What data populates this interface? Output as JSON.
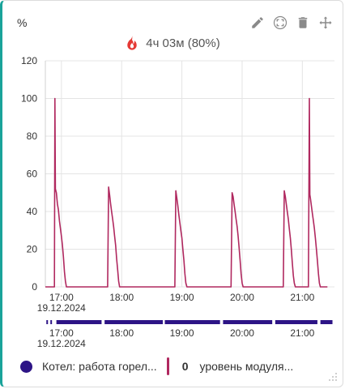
{
  "card": {
    "unit_label": "%",
    "summary_text": "4ч 03м (80%)"
  },
  "toolbar": [
    {
      "icon": "pencil-icon"
    },
    {
      "icon": "fullscreen-icon"
    },
    {
      "icon": "trash-icon"
    },
    {
      "icon": "move-icon"
    }
  ],
  "colors": {
    "accent": "#1aa39a",
    "series_line": "#b0285f",
    "burner_bar": "#2d1486",
    "flame": "#e53935"
  },
  "chart_data": {
    "type": "line",
    "title": "",
    "ylabel": "%",
    "ylim": [
      0,
      120
    ],
    "yticks": [
      0,
      20,
      40,
      60,
      80,
      100,
      120
    ],
    "xlim": [
      "16:44",
      "21:32"
    ],
    "xticks": [
      {
        "t": "17:00",
        "label": "17:00",
        "sublabel": "19.12.2024"
      },
      {
        "t": "18:00",
        "label": "18:00"
      },
      {
        "t": "19:00",
        "label": "19:00"
      },
      {
        "t": "20:00",
        "label": "20:00"
      },
      {
        "t": "21:00",
        "label": "21:00"
      }
    ],
    "grid": true,
    "series": [
      {
        "name": "уровень модуля...",
        "points": [
          [
            "16:44",
            0
          ],
          [
            "16:53",
            0
          ],
          [
            "16:53.5",
            100
          ],
          [
            "16:54",
            52
          ],
          [
            "16:55",
            50
          ],
          [
            "16:56",
            44
          ],
          [
            "16:57",
            41
          ],
          [
            "16:58",
            35
          ],
          [
            "16:59",
            31
          ],
          [
            "17:00",
            27
          ],
          [
            "17:01",
            22
          ],
          [
            "17:02",
            16
          ],
          [
            "17:03",
            8
          ],
          [
            "17:04",
            3
          ],
          [
            "17:05",
            0
          ],
          [
            "17:46",
            0
          ],
          [
            "17:47",
            53
          ],
          [
            "17:48",
            49
          ],
          [
            "17:49",
            44
          ],
          [
            "17:50",
            40
          ],
          [
            "17:51",
            36
          ],
          [
            "17:52",
            32
          ],
          [
            "17:53",
            27
          ],
          [
            "17:54",
            22
          ],
          [
            "17:55",
            15
          ],
          [
            "17:56",
            9
          ],
          [
            "17:57",
            3
          ],
          [
            "17:58",
            0
          ],
          [
            "18:53",
            0
          ],
          [
            "18:54",
            51
          ],
          [
            "18:55",
            47
          ],
          [
            "18:56",
            43
          ],
          [
            "18:57",
            38
          ],
          [
            "18:58",
            34
          ],
          [
            "18:59",
            30
          ],
          [
            "19:00",
            26
          ],
          [
            "19:01",
            20
          ],
          [
            "19:02",
            14
          ],
          [
            "19:03",
            7
          ],
          [
            "19:04",
            2
          ],
          [
            "19:05",
            0
          ],
          [
            "19:49",
            0
          ],
          [
            "19:50",
            50
          ],
          [
            "19:51",
            48
          ],
          [
            "19:52",
            44
          ],
          [
            "19:53",
            40
          ],
          [
            "19:54",
            36
          ],
          [
            "19:55",
            32
          ],
          [
            "19:56",
            27
          ],
          [
            "19:57",
            21
          ],
          [
            "19:58",
            14
          ],
          [
            "19:59",
            7
          ],
          [
            "20:00",
            2
          ],
          [
            "20:01",
            0
          ],
          [
            "20:41",
            0
          ],
          [
            "20:42",
            51
          ],
          [
            "20:43",
            48
          ],
          [
            "20:44",
            44
          ],
          [
            "20:45",
            40
          ],
          [
            "20:46",
            36
          ],
          [
            "20:47",
            31
          ],
          [
            "20:48",
            26
          ],
          [
            "20:49",
            20
          ],
          [
            "20:50",
            13
          ],
          [
            "20:51",
            6
          ],
          [
            "20:52",
            2
          ],
          [
            "20:53",
            0
          ],
          [
            "21:06",
            0
          ],
          [
            "21:07",
            100
          ],
          [
            "21:07.5",
            49
          ],
          [
            "21:08",
            47
          ],
          [
            "21:09",
            43
          ],
          [
            "21:10",
            39
          ],
          [
            "21:11",
            35
          ],
          [
            "21:12",
            31
          ],
          [
            "21:13",
            26
          ],
          [
            "21:14",
            20
          ],
          [
            "21:15",
            14
          ],
          [
            "21:16",
            7
          ],
          [
            "21:17",
            2
          ],
          [
            "21:18",
            0
          ],
          [
            "21:25",
            0
          ]
        ]
      }
    ],
    "burner_timeline": {
      "name": "Котел: работа горел...",
      "on_segments": [
        [
          "16:45",
          "16:46"
        ],
        [
          "16:49",
          "16:50"
        ],
        [
          "16:55",
          "17:40"
        ],
        [
          "17:43",
          "18:41"
        ],
        [
          "18:43",
          "19:38"
        ],
        [
          "19:41",
          "20:30"
        ],
        [
          "20:33",
          "21:15"
        ],
        [
          "21:18",
          "21:30"
        ]
      ]
    }
  },
  "legend": {
    "burner_label": "Котел: работа горел...",
    "series_value": "0",
    "series_label": "уровень модуля..."
  }
}
